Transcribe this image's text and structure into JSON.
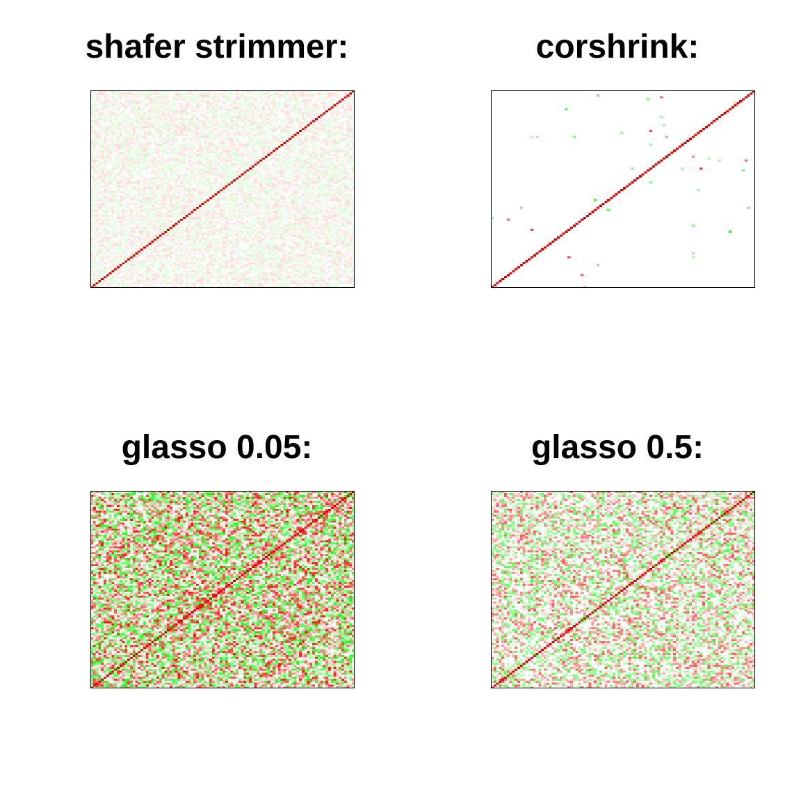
{
  "chart_data": [
    {
      "type": "heatmap",
      "title": "shafer strimmer:",
      "matrix_size": 100,
      "diagonal_value": 1.0,
      "offdiag_magnitude_max": 0.12,
      "sparsity": 0.0,
      "colors": {
        "positive": "#ff0000",
        "negative": "#00ff00",
        "zero": "#ffffff"
      },
      "xlabel": "",
      "ylabel": ""
    },
    {
      "type": "heatmap",
      "title": "corshrink:",
      "matrix_size": 100,
      "diagonal_value": 1.0,
      "offdiag_magnitude_max": 0.7,
      "sparsity": 0.996,
      "colors": {
        "positive": "#ff0000",
        "negative": "#00ff00",
        "zero": "#ffffff"
      },
      "xlabel": "",
      "ylabel": ""
    },
    {
      "type": "heatmap",
      "title": "glasso 0.05:",
      "matrix_size": 100,
      "diagonal_value": 1.0,
      "offdiag_magnitude_max": 0.75,
      "sparsity": 0.1,
      "colors": {
        "positive": "#ff0000",
        "negative": "#00ff00",
        "zero": "#ffffff"
      },
      "xlabel": "",
      "ylabel": ""
    },
    {
      "type": "heatmap",
      "title": "glasso 0.5:",
      "matrix_size": 100,
      "diagonal_value": 1.0,
      "offdiag_magnitude_max": 0.55,
      "sparsity": 0.3,
      "colors": {
        "positive": "#ff0000",
        "negative": "#00ff00",
        "zero": "#ffffff"
      },
      "xlabel": "",
      "ylabel": ""
    }
  ]
}
